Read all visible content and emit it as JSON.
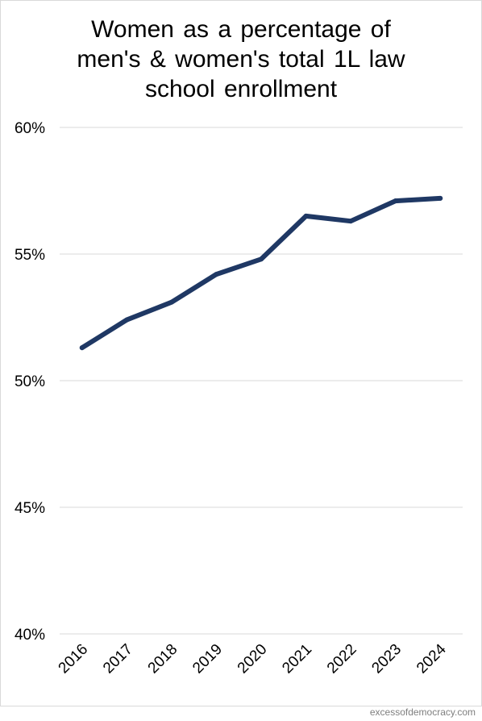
{
  "colors": {
    "line": "#1f3864",
    "grid": "#d9d9d9",
    "text": "#000000",
    "credit": "#7f7f7f"
  },
  "credit": "excessofdemocracy.com",
  "chart_data": {
    "type": "line",
    "title_lines": [
      "Women as a percentage of",
      "men's & women's total 1L law",
      "school enrollment"
    ],
    "xlabel": "",
    "ylabel": "",
    "categories": [
      "2016",
      "2017",
      "2018",
      "2019",
      "2020",
      "2021",
      "2022",
      "2023",
      "2024"
    ],
    "series": [
      {
        "values": [
          51.3,
          52.4,
          53.1,
          54.2,
          54.8,
          56.5,
          56.3,
          57.1,
          57.2
        ]
      }
    ],
    "ylim": [
      40,
      60
    ],
    "yticks": [
      40,
      45,
      50,
      55,
      60
    ],
    "ytick_labels": [
      "40%",
      "45%",
      "50%",
      "55%",
      "60%"
    ],
    "grid": true,
    "legend": "none"
  }
}
